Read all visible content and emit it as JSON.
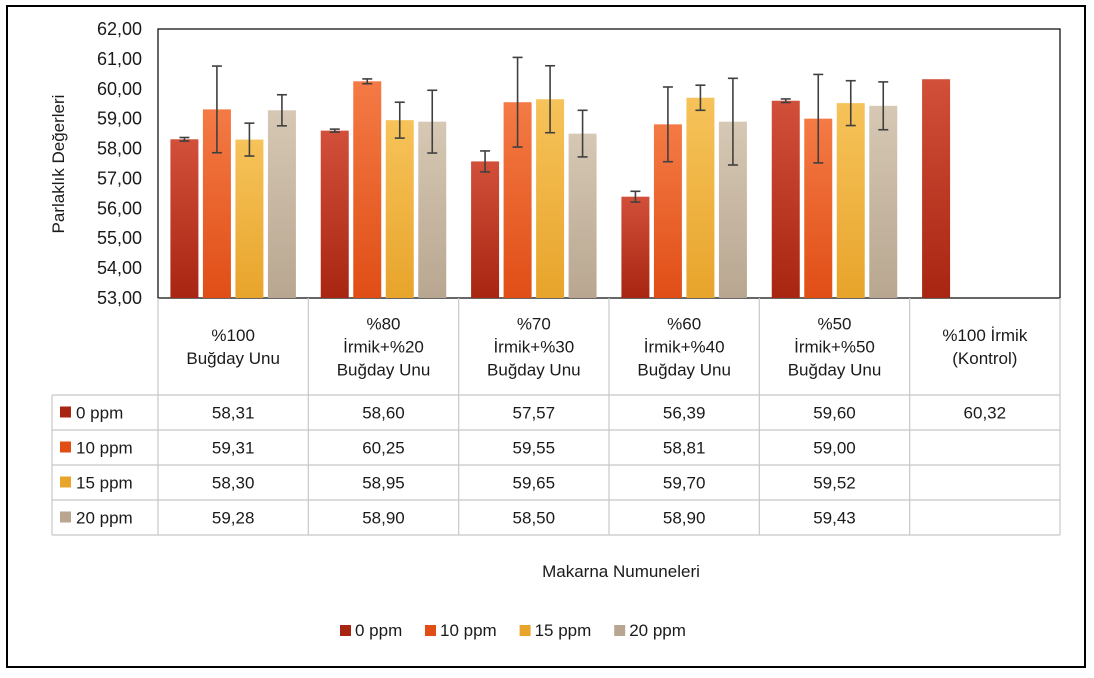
{
  "colors": {
    "series": [
      "#a82511",
      "#e04e16",
      "#e8a42b",
      "#b8a690"
    ],
    "series_light": [
      "#d2503a",
      "#f47a45",
      "#f6c35a",
      "#d6c8b4"
    ],
    "grid": "#d9d9d9",
    "table_border": "#c8c8c8",
    "errorbar": "#404040"
  },
  "chart_data": {
    "type": "bar",
    "ylabel": "Parlaklık Değerleri",
    "xlabel": "Makarna Numuneleri",
    "ylim": [
      53,
      62
    ],
    "yticks": [
      "53,00",
      "54,00",
      "55,00",
      "56,00",
      "57,00",
      "58,00",
      "59,00",
      "60,00",
      "61,00",
      "62,00"
    ],
    "categories": [
      [
        "%100",
        "Buğday Unu"
      ],
      [
        "%80",
        "İrmik+%20",
        "Buğday Unu"
      ],
      [
        "%70",
        "İrmik+%30",
        "Buğday Unu"
      ],
      [
        "%60",
        "İrmik+%40",
        "Buğday Unu"
      ],
      [
        "%50",
        "İrmik+%50",
        "Buğday Unu"
      ],
      [
        "%100 İrmik",
        "(Kontrol)"
      ]
    ],
    "series": [
      {
        "name": "0 ppm",
        "values": [
          58.31,
          58.6,
          57.57,
          56.39,
          59.6,
          60.32
        ],
        "labels": [
          "58,31",
          "58,60",
          "57,57",
          "56,39",
          "59,60",
          "60,32"
        ],
        "err": [
          0.06,
          0.05,
          0.35,
          0.18,
          0.06,
          null
        ]
      },
      {
        "name": "10 ppm",
        "values": [
          59.31,
          60.25,
          59.55,
          58.81,
          59.0,
          null
        ],
        "labels": [
          "59,31",
          "60,25",
          "59,55",
          "58,81",
          "59,00",
          ""
        ],
        "err": [
          1.45,
          0.08,
          1.5,
          1.25,
          1.48,
          null
        ]
      },
      {
        "name": "15 ppm",
        "values": [
          58.3,
          58.95,
          59.65,
          59.7,
          59.52,
          null
        ],
        "labels": [
          "58,30",
          "58,95",
          "59,65",
          "59,70",
          "59,52",
          ""
        ],
        "err": [
          0.55,
          0.6,
          1.12,
          0.42,
          0.75,
          null
        ]
      },
      {
        "name": "20 ppm",
        "values": [
          59.28,
          58.9,
          58.5,
          58.9,
          59.43,
          null
        ],
        "labels": [
          "59,28",
          "58,90",
          "58,50",
          "58,90",
          "59,43",
          ""
        ],
        "err": [
          0.52,
          1.05,
          0.78,
          1.45,
          0.8,
          null
        ]
      }
    ],
    "legend_position": "bottom",
    "grid": false,
    "data_table": true
  }
}
